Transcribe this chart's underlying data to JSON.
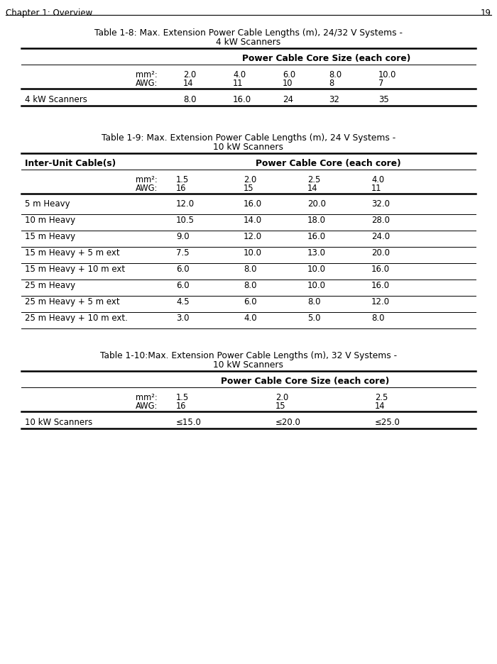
{
  "header_text": "Chapter 1: Overview",
  "page_num": "19",
  "bg_color": "#ffffff",
  "text_color": "#000000",
  "table1_title_line1": "Table 1-8: Max. Extension Power Cable Lengths (m), 24/32 V Systems -",
  "table1_title_line2": "4 kW Scanners",
  "table1_header_span": "Power Cable Core Size (each core)",
  "table1_mm2_label": "mm²:",
  "table1_awg_label": "AWG:",
  "table1_mm2_vals": [
    "2.0",
    "4.0",
    "6.0",
    "8.0",
    "10.0"
  ],
  "table1_awg_vals": [
    "14",
    "11",
    "10",
    "8",
    "7"
  ],
  "table1_row_label": "4 kW Scanners",
  "table1_row_vals": [
    "8.0",
    "16.0",
    "24",
    "32",
    "35"
  ],
  "table2_title_line1": "Table 1-9: Max. Extension Power Cable Lengths (m), 24 V Systems -",
  "table2_title_line2": "10 kW Scanners",
  "table2_col1_header": "Inter-Unit Cable(s)",
  "table2_col2_header": "Power Cable Core (each core)",
  "table2_mm2_label": "mm²:",
  "table2_awg_label": "AWG:",
  "table2_mm2_vals": [
    "1.5",
    "2.0",
    "2.5",
    "4.0"
  ],
  "table2_awg_vals": [
    "16",
    "15",
    "14",
    "11"
  ],
  "table2_rows": [
    [
      "5 m Heavy",
      "12.0",
      "16.0",
      "20.0",
      "32.0"
    ],
    [
      "10 m Heavy",
      "10.5",
      "14.0",
      "18.0",
      "28.0"
    ],
    [
      "15 m Heavy",
      "9.0",
      "12.0",
      "16.0",
      "24.0"
    ],
    [
      "15 m Heavy + 5 m ext",
      "7.5",
      "10.0",
      "13.0",
      "20.0"
    ],
    [
      "15 m Heavy + 10 m ext",
      "6.0",
      "8.0",
      "10.0",
      "16.0"
    ],
    [
      "25 m Heavy",
      "6.0",
      "8.0",
      "10.0",
      "16.0"
    ],
    [
      "25 m Heavy + 5 m ext",
      "4.5",
      "6.0",
      "8.0",
      "12.0"
    ],
    [
      "25 m Heavy + 10 m ext.",
      "3.0",
      "4.0",
      "5.0",
      "8.0"
    ]
  ],
  "table3_title_line1": "Table 1-10:Max. Extension Power Cable Lengths (m), 32 V Systems -",
  "table3_title_line2": "10 kW Scanners",
  "table3_header_span": "Power Cable Core Size (each core)",
  "table3_mm2_label": "mm²:",
  "table3_awg_label": "AWG:",
  "table3_mm2_vals": [
    "1.5",
    "2.0",
    "2.5"
  ],
  "table3_awg_vals": [
    "16",
    "15",
    "14"
  ],
  "table3_row_label": "10 kW Scanners",
  "table3_row_vals": [
    "≤15.0",
    "≤20.0",
    "≤25.0"
  ]
}
